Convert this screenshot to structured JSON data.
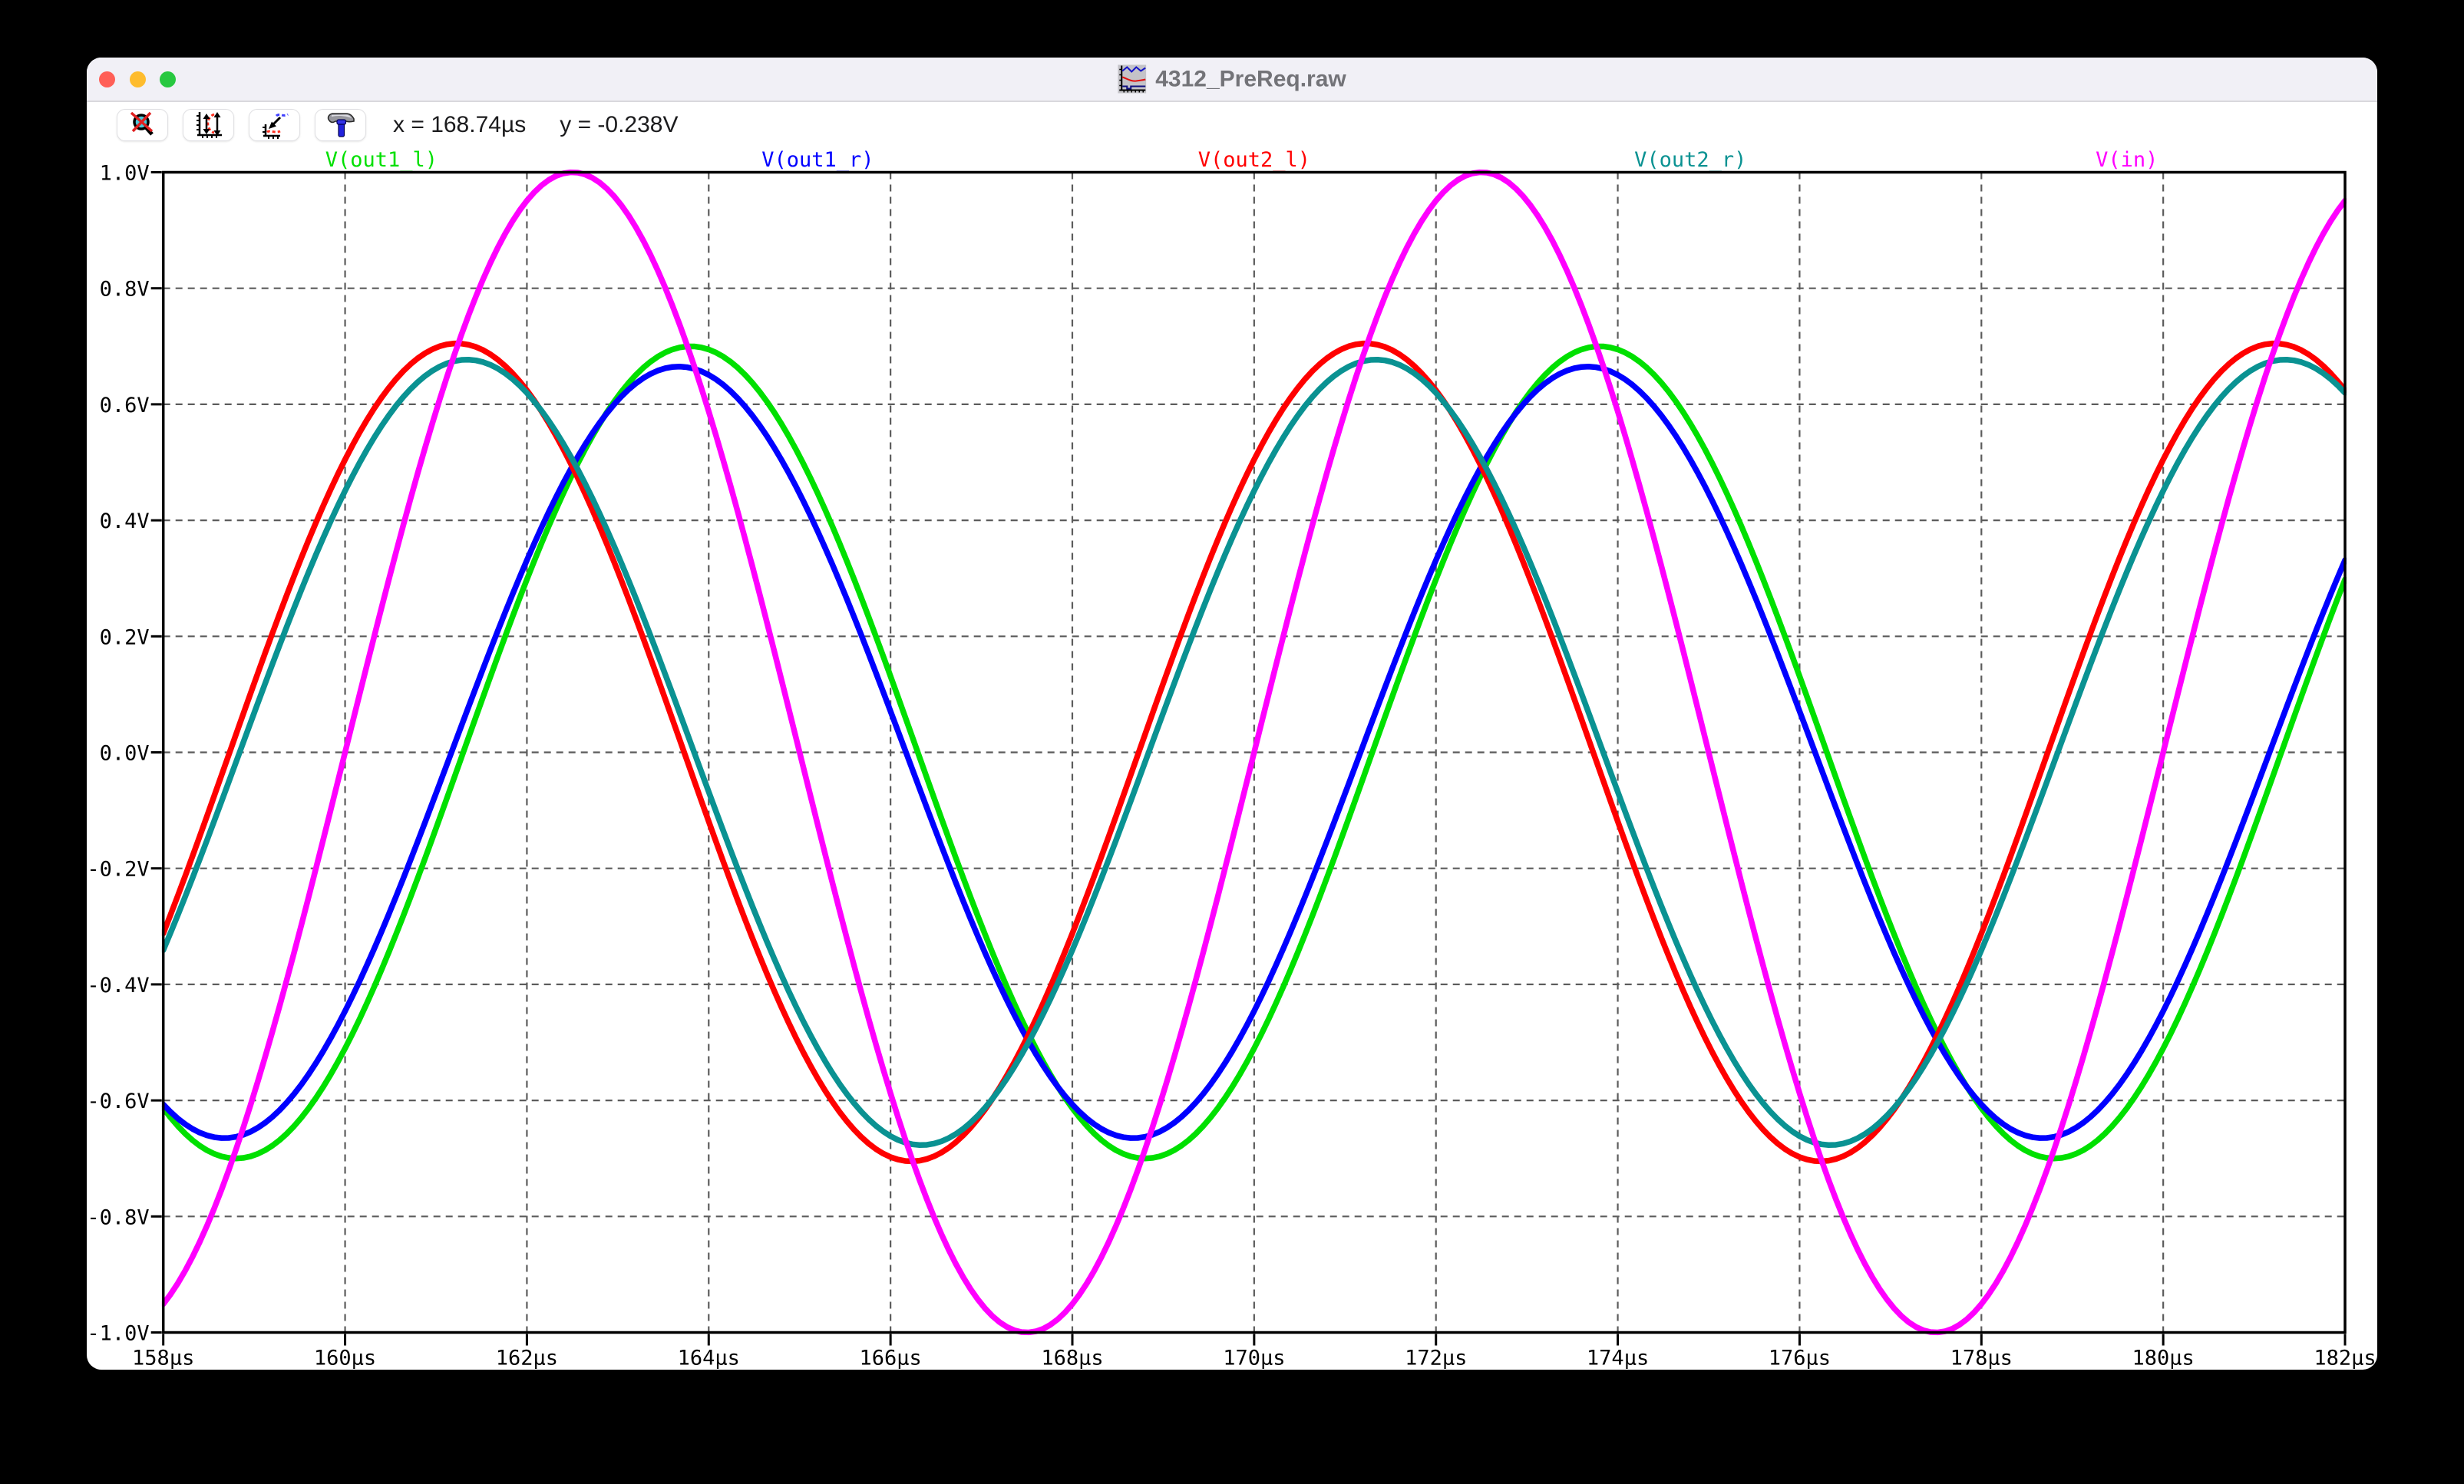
{
  "window": {
    "title": "4312_PreReq.raw",
    "traffic_lights": [
      "close",
      "minimize",
      "zoom"
    ],
    "toolbar": {
      "buttons": [
        "zoom-cancel",
        "autorange-vertical",
        "autorange-plot",
        "control-panel"
      ],
      "readout_x": "x = 168.74µs",
      "readout_y": "y = -0.238V"
    }
  },
  "chart_data": {
    "type": "line",
    "title": "",
    "xlabel": "",
    "ylabel": "",
    "x_axis": {
      "min_us": 158,
      "max_us": 182,
      "step_us": 2,
      "tick_labels": [
        "158µs",
        "160µs",
        "162µs",
        "164µs",
        "166µs",
        "168µs",
        "170µs",
        "172µs",
        "174µs",
        "176µs",
        "178µs",
        "180µs",
        "182µs"
      ]
    },
    "y_axis": {
      "min_v": -1.0,
      "max_v": 1.0,
      "step_v": 0.2,
      "tick_labels": [
        "1.0V",
        "0.8V",
        "0.6V",
        "0.4V",
        "0.2V",
        "0.0V",
        "-0.2V",
        "-0.4V",
        "-0.6V",
        "-0.8V",
        "-1.0V"
      ]
    },
    "grid": "dashed",
    "legend_position": "top",
    "series": [
      {
        "name": "V(out1_l)",
        "color": "#00e000",
        "amplitude_v": 0.7,
        "period_us": 10,
        "peak_time_us": 163.8
      },
      {
        "name": "V(out1_r)",
        "color": "#0000ff",
        "amplitude_v": 0.665,
        "period_us": 10,
        "peak_time_us": 163.67
      },
      {
        "name": "V(out2_l)",
        "color": "#ff0000",
        "amplitude_v": 0.705,
        "period_us": 10,
        "peak_time_us": 161.23
      },
      {
        "name": "V(out2_r)",
        "color": "#0a9292",
        "amplitude_v": 0.677,
        "period_us": 10,
        "peak_time_us": 161.34
      },
      {
        "name": "V(in)",
        "color": "#ff00ff",
        "amplitude_v": 1.0,
        "period_us": 10,
        "peak_time_us": 162.5
      }
    ]
  }
}
